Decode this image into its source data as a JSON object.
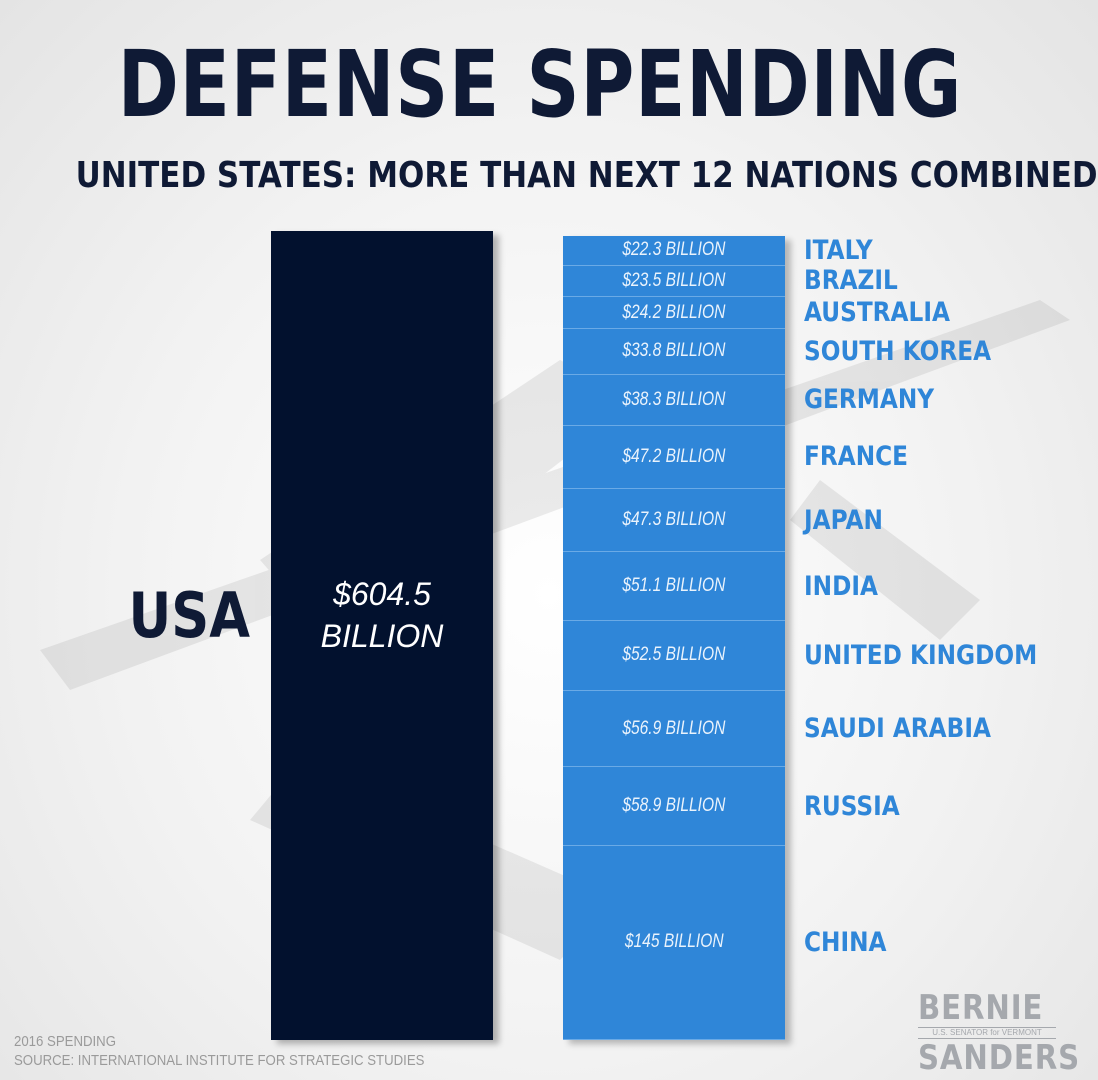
{
  "header": {
    "title": "DEFENSE SPENDING",
    "subtitle": "UNITED STATES: MORE THAN NEXT 12 NATIONS COMBINED"
  },
  "chart_data": {
    "type": "bar",
    "title": "DEFENSE SPENDING",
    "subtitle": "UNITED STATES: MORE THAN NEXT 12 NATIONS COMBINED",
    "unit": "billion USD",
    "primary": {
      "name": "USA",
      "value": 604.5,
      "label": "$604.5 BILLION"
    },
    "stack": [
      {
        "name": "ITALY",
        "value": 22.3,
        "label": "$22.3 BILLION"
      },
      {
        "name": "BRAZIL",
        "value": 23.5,
        "label": "$23.5 BILLION"
      },
      {
        "name": "AUSTRALIA",
        "value": 24.2,
        "label": "$24.2  BILLION"
      },
      {
        "name": "SOUTH KOREA",
        "value": 33.8,
        "label": "$33.8  BILLION"
      },
      {
        "name": "GERMANY",
        "value": 38.3,
        "label": "$38.3  BILLION"
      },
      {
        "name": "FRANCE",
        "value": 47.2,
        "label": "$47.2  BILLION"
      },
      {
        "name": "JAPAN",
        "value": 47.3,
        "label": "$47.3  BILLION"
      },
      {
        "name": "INDIA",
        "value": 51.1,
        "label": "$51.1  BILLION"
      },
      {
        "name": "UNITED KINGDOM",
        "value": 52.5,
        "label": "$52.5  BILLION"
      },
      {
        "name": "SAUDI ARABIA",
        "value": 56.9,
        "label": "$56.9 BILLION"
      },
      {
        "name": "RUSSIA",
        "value": 58.9,
        "label": "$58.9 BILLION"
      },
      {
        "name": "CHINA",
        "value": 145,
        "label": "$145 BILLION"
      }
    ],
    "colors": {
      "primary": "#02112e",
      "stack": "#2f86d8",
      "title": "#0f1a35"
    }
  },
  "footer": {
    "year": "2016 SPENDING",
    "source": "SOURCE: INTERNATIONAL INSTITUTE FOR STRATEGIC STUDIES"
  },
  "logo": {
    "first": "BERNIE",
    "tagline": "U.S. SENATOR for VERMONT",
    "last": "SANDERS"
  }
}
